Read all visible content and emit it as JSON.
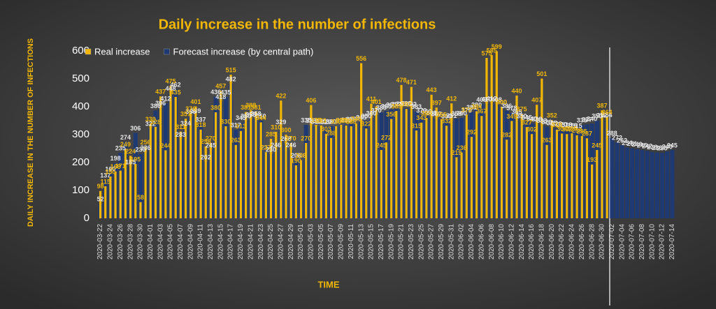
{
  "chart_data": {
    "type": "bar",
    "title": "Daily increase in the number of infections",
    "y_label": "DAILY INCREASE IN THE NUMBER OF INFECTIONS",
    "x_label": "TIME",
    "ylim": [
      0,
      600
    ],
    "yticks": [
      0,
      100,
      200,
      300,
      400,
      500,
      600
    ],
    "legend": "top-left",
    "categories": [
      "2020-03-22",
      null,
      "2020-03-24",
      null,
      "2020-03-26",
      null,
      "2020-03-28",
      null,
      "2020-03-30",
      null,
      "2020-04-01",
      null,
      "2020-04-03",
      null,
      "2020-04-05",
      null,
      "2020-04-07",
      null,
      "2020-04-09",
      null,
      "2020-04-11",
      null,
      "2020-04-13",
      null,
      "2020-04-15",
      null,
      "2020-04-17",
      null,
      "2020-04-19",
      null,
      "2020-04-21",
      null,
      "2020-04-23",
      null,
      "2020-04-25",
      null,
      "2020-04-27",
      null,
      "2020-04-29",
      null,
      "2020-05-01",
      null,
      "2020-05-03",
      null,
      "2020-05-05",
      null,
      "2020-05-07",
      null,
      "2020-05-09",
      null,
      "2020-05-11",
      null,
      "2020-05-13",
      null,
      "2020-05-15",
      null,
      "2020-05-17",
      null,
      "2020-05-19",
      null,
      "2020-05-21",
      null,
      "2020-05-23",
      null,
      "2020-05-25",
      null,
      "2020-05-27",
      null,
      "2020-05-29",
      null,
      "2020-05-31",
      null,
      "2020-06-02",
      null,
      "2020-06-04",
      null,
      "2020-06-06",
      null,
      "2020-06-08",
      null,
      "2020-06-10",
      null,
      "2020-06-12",
      null,
      "2020-06-14",
      null,
      "2020-06-16",
      null,
      "2020-06-18",
      null,
      "2020-06-20",
      null,
      "2020-06-22",
      null,
      "2020-06-24",
      null,
      "2020-06-26",
      null,
      "2020-06-28",
      null,
      "2020-06-30",
      null,
      "2020-07-02",
      null,
      "2020-07-04",
      null,
      "2020-07-06",
      null,
      "2020-07-08",
      null,
      "2020-07-10",
      null,
      "2020-07-12",
      null,
      "2020-07-14"
    ],
    "series": [
      {
        "name": "Forecast increase (by central path)",
        "color": "#1f3a72",
        "values": [
          52,
          137,
          160,
          198,
          235,
          274,
          185,
          306,
          230,
          236,
          322,
          386,
          396,
          412,
          448,
          462,
          283,
          324,
          366,
          369,
          337,
          202,
          245,
          436,
          418,
          435,
          482,
          317,
          343,
          350,
          355,
          358,
          350,
          237,
          230,
          246,
          329,
          268,
          246,
          208,
          208,
          335,
          333,
          330,
          330,
          329,
          330,
          330,
          335,
          336,
          338,
          340,
          345,
          350,
          360,
          370,
          380,
          385,
          390,
          392,
          393,
          395,
          392,
          383,
          370,
          366,
          361,
          357,
          355,
          350,
          351,
          358,
          360,
          370,
          381,
          390,
          409,
          410,
          412,
          408,
          400,
          386,
          378,
          365,
          350,
          345,
          340,
          338,
          333,
          329,
          325,
          322,
          320,
          318,
          316,
          315,
          335,
          337,
          340,
          350,
          352,
          354,
          288,
          272,
          262,
          254,
          251,
          248,
          245,
          242,
          238,
          236,
          235,
          240,
          245
        ]
      },
      {
        "name": "Real increase",
        "color": "#f2b705",
        "values": [
          98,
          115,
          150,
          168,
          171,
          249,
          224,
          195,
          58,
          256,
          339,
          328,
          437,
          244,
          475,
          435,
          311,
          357,
          376,
          401,
          318,
          258,
          270,
          380,
          457,
          330,
          515,
          263,
          313,
          381,
          388,
          381,
          344,
          237,
          285,
          310,
          422,
          300,
          270,
          190,
          208,
          270,
          406,
          335,
          333,
          303,
          288,
          330,
          335,
          333,
          330,
          340,
          556,
          322,
          411,
          401,
          245,
          272,
          356,
          385,
          478,
          392,
          471,
          315,
          343,
          360,
          443,
          397,
          355,
          332,
          412,
          219,
          236,
          372,
          292,
          384,
          367,
          575,
          585,
          599,
          400,
          282,
          349,
          440,
          375,
          327,
          302,
          407,
          501,
          263,
          352,
          318,
          304,
          302,
          305,
          298,
          295,
          287,
          193,
          245,
          387,
          364,
          null,
          null,
          null,
          null,
          null,
          null,
          null,
          null,
          null,
          null,
          null,
          null,
          null
        ]
      }
    ]
  }
}
